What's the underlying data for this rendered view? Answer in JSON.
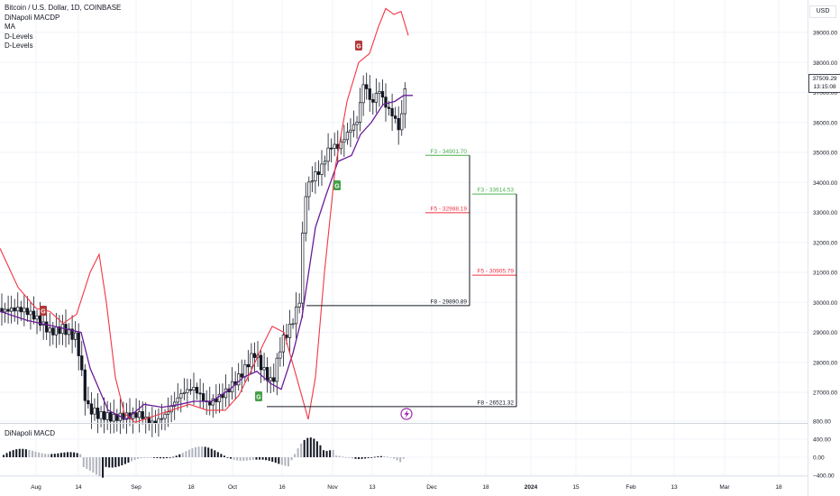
{
  "legend": {
    "symbol": "Bitcoin / U.S. Dollar, 1D, COINBASE",
    "indicators": [
      "DiNapoli MACDP",
      "MA",
      "D-Levels",
      "D-Levels"
    ]
  },
  "macd_pane_title": "DiNapoli MACD",
  "price_axis": {
    "currency": "USD",
    "ticks": [
      "39000.00",
      "38000.00",
      "37000.00",
      "36000.00",
      "35000.00",
      "34000.00",
      "33000.00",
      "32000.00",
      "31000.00",
      "30000.00",
      "29000.00",
      "28000.00",
      "27000.00"
    ],
    "tick_values": [
      39000,
      38000,
      37000,
      36000,
      35000,
      34000,
      33000,
      32000,
      31000,
      30000,
      29000,
      28000,
      27000
    ],
    "current_price": "37509.29",
    "countdown": "13:15:08"
  },
  "macd_axis": {
    "ticks": [
      "800.00",
      "400.00",
      "0.00",
      "−400.00"
    ],
    "tick_values": [
      800,
      400,
      0,
      -400
    ]
  },
  "time_axis": {
    "labels": [
      "Aug",
      "14",
      "Sep",
      "18",
      "Oct",
      "16",
      "Nov",
      "13",
      "Dec",
      "18",
      "2024",
      "15",
      "Feb",
      "13",
      "Mar",
      "18"
    ],
    "bold": [
      false,
      false,
      false,
      false,
      false,
      false,
      false,
      false,
      false,
      false,
      true,
      false,
      false,
      false,
      false,
      false
    ]
  },
  "levels": [
    {
      "label": "F3 - 34901.70",
      "price": 34901.7,
      "color": "#4caf50"
    },
    {
      "label": "F5 - 32988.19",
      "price": 32988.19,
      "color": "#f23645"
    },
    {
      "label": "F8 - 29890.89",
      "price": 29890.89,
      "color": "#131722"
    },
    {
      "label": "F3 - 33614.53",
      "price": 33614.53,
      "color": "#4caf50"
    },
    {
      "label": "F5 - 30905.79",
      "price": 30905.79,
      "color": "#f23645"
    },
    {
      "label": "F8 - 26521.32",
      "price": 26521.32,
      "color": "#131722"
    }
  ],
  "markers": [
    {
      "letter": "G",
      "kind": "sell",
      "color": "#b2383a"
    },
    {
      "letter": "G",
      "kind": "sell",
      "color": "#b2383a"
    },
    {
      "letter": "G",
      "kind": "buy",
      "color": "#43a047"
    },
    {
      "letter": "G",
      "kind": "buy",
      "color": "#43a047"
    }
  ],
  "colors": {
    "grid": "#f0f3fa",
    "candle": "#131722",
    "ma_line": "#6a1b9a",
    "band_line": "#f23645",
    "hist_up": "#131722",
    "hist_down": "#b2b5be"
  }
}
